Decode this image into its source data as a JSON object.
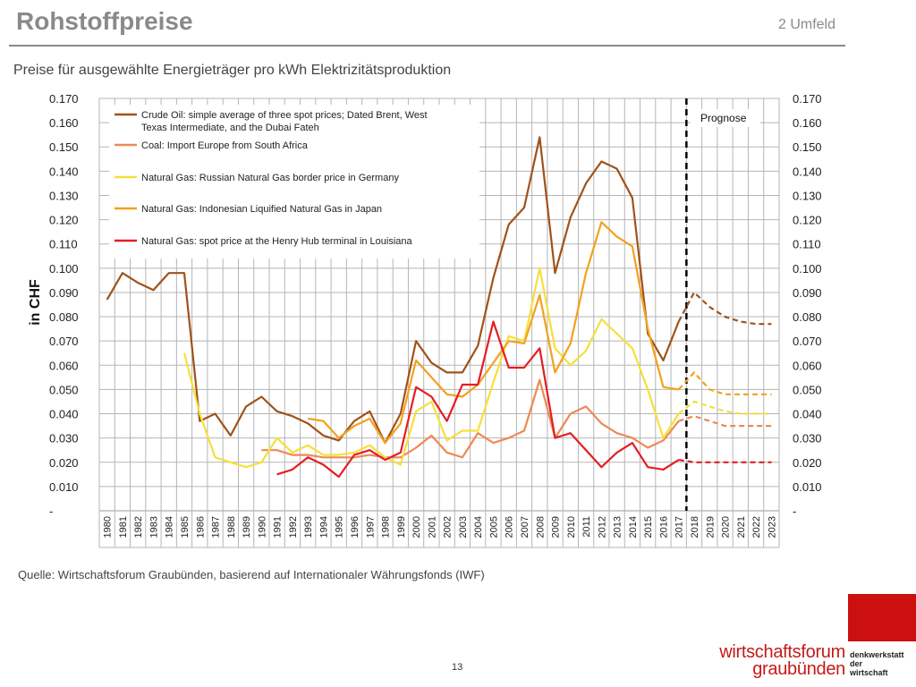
{
  "header": {
    "title": "Rohstoffpreise",
    "section": "2 Umfeld"
  },
  "chart_data": {
    "type": "line",
    "title": "Preise für ausgewählte Energieträger pro kWh Elektrizitätsproduktion",
    "ylabel": "in CHF",
    "xlabel": "",
    "ylim": [
      0,
      0.17
    ],
    "y_ticks": [
      "-",
      "0.010",
      "0.020",
      "0.030",
      "0.040",
      "0.050",
      "0.060",
      "0.070",
      "0.080",
      "0.090",
      "0.100",
      "0.110",
      "0.120",
      "0.130",
      "0.140",
      "0.150",
      "0.160",
      "0.170"
    ],
    "categories": [
      "1980",
      "1981",
      "1982",
      "1983",
      "1984",
      "1985",
      "1986",
      "1987",
      "1988",
      "1989",
      "1990",
      "1991",
      "1992",
      "1993",
      "1994",
      "1995",
      "1996",
      "1997",
      "1998",
      "1999",
      "2000",
      "2001",
      "2002",
      "2003",
      "2004",
      "2005",
      "2006",
      "2007",
      "2008",
      "2009",
      "2010",
      "2011",
      "2012",
      "2013",
      "2014",
      "2015",
      "2016",
      "2017",
      "2018",
      "2019",
      "2020",
      "2021",
      "2022",
      "2023"
    ],
    "forecast_start": "2017",
    "forecast_label": "Prognose",
    "grid": true,
    "legend_position": "top-left",
    "series": [
      {
        "name": "Crude Oil: simple average of three spot prices; Dated Brent, West Texas Intermediate, and the Dubai Fateh",
        "color": "#a0521a",
        "values": [
          0.087,
          0.098,
          0.094,
          0.091,
          0.098,
          0.098,
          0.037,
          0.04,
          0.031,
          0.043,
          0.047,
          0.041,
          0.039,
          0.036,
          0.031,
          0.029,
          0.037,
          0.041,
          0.028,
          0.04,
          0.07,
          0.061,
          0.057,
          0.057,
          0.068,
          0.096,
          0.118,
          0.125,
          0.154,
          0.098,
          0.121,
          0.135,
          0.144,
          0.141,
          0.129,
          0.073,
          0.062,
          0.078,
          0.09,
          0.084,
          0.08,
          0.078,
          0.077,
          0.077
        ]
      },
      {
        "name": "Coal: Import Europe from South Africa",
        "color": "#ec8a55",
        "values": [
          null,
          null,
          null,
          null,
          null,
          null,
          null,
          null,
          null,
          null,
          0.025,
          0.025,
          0.023,
          0.023,
          0.022,
          0.022,
          0.022,
          0.023,
          0.022,
          0.022,
          0.026,
          0.031,
          0.024,
          0.022,
          0.032,
          0.028,
          0.03,
          0.033,
          0.054,
          0.03,
          0.04,
          0.043,
          0.036,
          0.032,
          0.03,
          0.026,
          0.029,
          0.037,
          0.039,
          0.037,
          0.035,
          0.035,
          0.035,
          0.035
        ]
      },
      {
        "name": "Natural Gas: Russian Natural Gas border price in Germany",
        "color": "#f5e03a",
        "values": [
          null,
          null,
          null,
          null,
          null,
          0.065,
          0.04,
          0.022,
          0.02,
          0.018,
          0.02,
          0.03,
          0.024,
          0.027,
          0.023,
          0.023,
          0.024,
          0.027,
          0.022,
          0.019,
          0.041,
          0.045,
          0.029,
          0.033,
          0.033,
          0.053,
          0.072,
          0.07,
          0.1,
          0.067,
          0.06,
          0.066,
          0.079,
          0.073,
          0.067,
          0.05,
          0.03,
          0.04,
          0.045,
          0.043,
          0.041,
          0.04,
          0.04,
          0.04
        ]
      },
      {
        "name": "Natural Gas: Indonesian Liquified Natural Gas in Japan",
        "color": "#f3a11d",
        "values": [
          null,
          null,
          null,
          null,
          null,
          null,
          null,
          null,
          null,
          null,
          null,
          null,
          null,
          0.038,
          0.037,
          0.03,
          0.035,
          0.038,
          0.028,
          0.036,
          0.062,
          0.055,
          0.048,
          0.047,
          0.052,
          0.061,
          0.07,
          0.069,
          0.089,
          0.057,
          0.069,
          0.098,
          0.119,
          0.113,
          0.109,
          0.075,
          0.051,
          0.05,
          0.057,
          0.05,
          0.048,
          0.048,
          0.048,
          0.048
        ]
      },
      {
        "name": "Natural Gas: spot price at the Henry Hub terminal in Louisiana",
        "color": "#e31e24",
        "values": [
          null,
          null,
          null,
          null,
          null,
          null,
          null,
          null,
          null,
          null,
          null,
          0.015,
          0.017,
          0.022,
          0.019,
          0.014,
          0.023,
          0.025,
          0.021,
          0.024,
          0.051,
          0.047,
          0.037,
          0.052,
          0.052,
          0.078,
          0.059,
          0.059,
          0.067,
          0.03,
          0.032,
          0.025,
          0.018,
          0.024,
          0.028,
          0.018,
          0.017,
          0.021,
          0.02,
          0.02,
          0.02,
          0.02,
          0.02,
          0.02
        ]
      }
    ]
  },
  "source": "Quelle: Wirtschaftsforum Graubünden, basierend auf Internationaler Währungsfonds (IWF)",
  "footer": {
    "page_number": "13",
    "brand_line1": "wirtschaftsforum",
    "brand_line2": "graubünden",
    "tagline1": "denkwerkstatt",
    "tagline2": "der",
    "tagline3": "wirtschaft",
    "brand_color": "#cc1010"
  }
}
